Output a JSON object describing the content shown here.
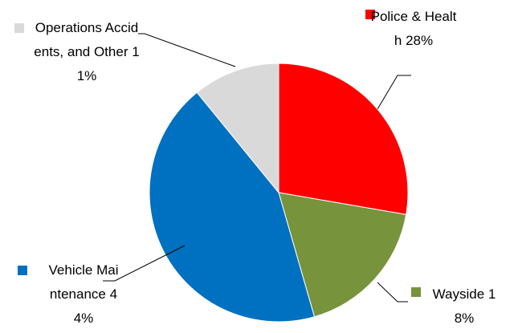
{
  "chart_data": {
    "type": "pie",
    "categories": [
      "Police & Health",
      "Wayside",
      "Vehicle Maintenance",
      "Operations Accidents, and Other"
    ],
    "values": [
      28,
      18,
      44,
      11
    ],
    "value_labels": [
      "28%",
      "18%",
      "44%",
      "11%"
    ],
    "colors": [
      "#ff0000",
      "#77933c",
      "#0070c0",
      "#d9d9d9"
    ]
  }
}
